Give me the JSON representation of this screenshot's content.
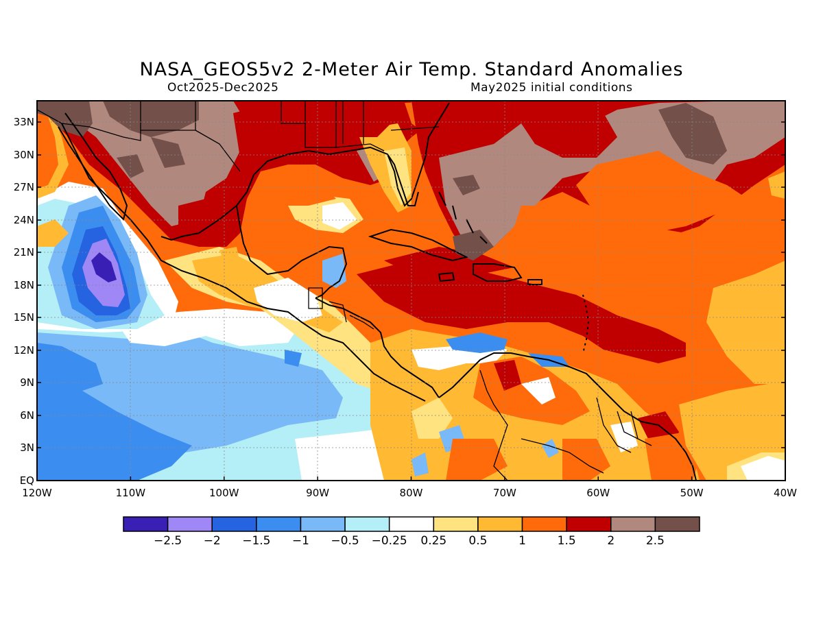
{
  "title": "NASA_GEOS5v2 2-Meter Air Temp. Standard Anomalies",
  "period": "Oct2025-Dec2025",
  "init": "May2025 initial conditions",
  "lat_labels": [
    "33N",
    "30N",
    "27N",
    "24N",
    "21N",
    "18N",
    "15N",
    "12N",
    "9N",
    "6N",
    "3N",
    "EQ"
  ],
  "lon_labels": [
    "120W",
    "110W",
    "100W",
    "90W",
    "80W",
    "70W",
    "60W",
    "50W",
    "40W"
  ],
  "colorbar": {
    "colors": [
      "#3a1fb4",
      "#9f87f5",
      "#2563e0",
      "#3b8ef0",
      "#79b9f7",
      "#b4eef7",
      "#ffffff",
      "#ffe380",
      "#ffb933",
      "#ff6b0a",
      "#c00000",
      "#b1887e",
      "#74504b"
    ],
    "labels": [
      "-2.5",
      "-2",
      "-1.5",
      "-1",
      "-0.5",
      "-0.25",
      "0.25",
      "0.5",
      "1",
      "1.5",
      "2",
      "2.5"
    ]
  },
  "chart_data": {
    "type": "heatmap",
    "title": "NASA_GEOS5v2 2-Meter Air Temp. Standard Anomalies",
    "xlim": [
      "120W",
      "40W"
    ],
    "ylim": [
      "EQ",
      "35N"
    ],
    "levels": [
      -2.5,
      -2,
      -1.5,
      -1,
      -0.5,
      -0.25,
      0.25,
      0.5,
      1,
      1.5,
      2,
      2.5
    ]
  }
}
